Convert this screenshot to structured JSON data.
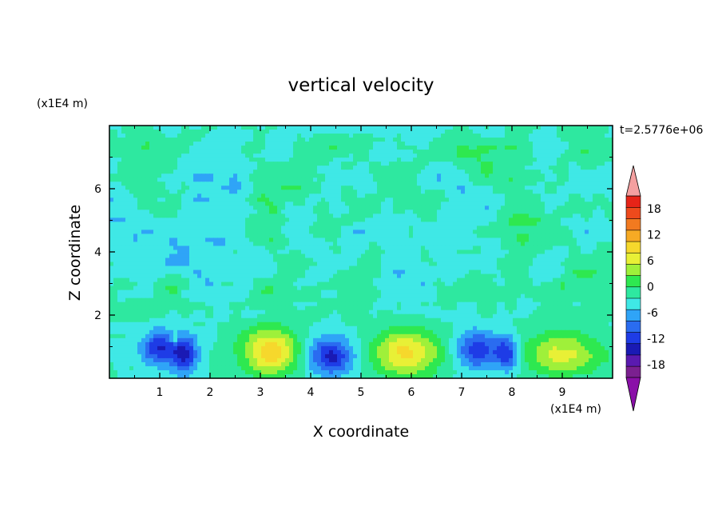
{
  "chart_data": {
    "type": "heatmap",
    "title": "vertical velocity",
    "xlabel": "X coordinate",
    "ylabel": "Z coordinate",
    "x_unit_label": "(x1E4 m)",
    "y_unit_label": "(x1E4 m)",
    "time_label": "t=2.5776e+06",
    "xlim": [
      0,
      10
    ],
    "ylim": [
      0,
      8
    ],
    "x_ticks": [
      "1",
      "2",
      "3",
      "4",
      "5",
      "6",
      "7",
      "8",
      "9"
    ],
    "y_ticks": [
      "2",
      "4",
      "6"
    ],
    "colorbar": {
      "min": -21,
      "max": 21,
      "step": 3,
      "tick_labels": [
        "18",
        "12",
        "6",
        "0",
        "-6",
        "-12",
        "-18"
      ],
      "tick_values": [
        18,
        12,
        6,
        0,
        -6,
        -12,
        -18
      ],
      "colors": [
        "#7b2090",
        "#5a1ab0",
        "#1a1ab4",
        "#1e3ce6",
        "#2a6cf0",
        "#2fa4f7",
        "#3fe8e6",
        "#2ee8a0",
        "#2ee850",
        "#9ff03a",
        "#e8f036",
        "#f6d82c",
        "#f6aa24",
        "#f27a20",
        "#ee4a1c",
        "#e62418"
      ],
      "over_color": "#f4a0a0",
      "under_color": "#8a10a8"
    },
    "cells_upper": [
      {
        "x": 5,
        "z": 6.5,
        "w": -2
      },
      {
        "x": 5,
        "z": 4.2,
        "w": 1
      }
    ],
    "features": [
      {
        "x": 1.0,
        "z": 0.95,
        "w": -12,
        "sx": 0.35,
        "sz": 0.55
      },
      {
        "x": 1.5,
        "z": 0.75,
        "w": -13,
        "sx": 0.25,
        "sz": 0.6
      },
      {
        "x": 1.3,
        "z": 1.25,
        "w": 6,
        "sx": 0.08,
        "sz": 0.15
      },
      {
        "x": 3.2,
        "z": 0.85,
        "w": 14,
        "sx": 0.55,
        "sz": 0.75
      },
      {
        "x": 4.4,
        "z": 0.7,
        "w": -13,
        "sx": 0.45,
        "sz": 0.6
      },
      {
        "x": 5.9,
        "z": 0.8,
        "w": 13,
        "sx": 0.65,
        "sz": 0.75
      },
      {
        "x": 7.3,
        "z": 0.9,
        "w": -11,
        "sx": 0.4,
        "sz": 0.6
      },
      {
        "x": 7.9,
        "z": 0.8,
        "w": -12,
        "sx": 0.25,
        "sz": 0.55
      },
      {
        "x": 9.0,
        "z": 0.75,
        "w": 10,
        "sx": 0.8,
        "sz": 0.7
      }
    ]
  }
}
